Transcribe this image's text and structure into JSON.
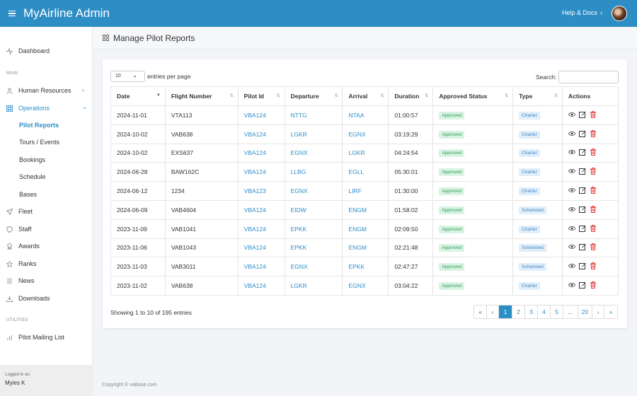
{
  "app": {
    "title": "MyAirline Admin",
    "help_label": "Help & Docs"
  },
  "sidebar": {
    "dashboard": "Dashboard",
    "section_main": "MAIN",
    "section_utilities": "UTILITIES",
    "items": [
      {
        "label": "Human Resources"
      },
      {
        "label": "Operations"
      },
      {
        "label": "Fleet"
      },
      {
        "label": "Staff"
      },
      {
        "label": "Awards"
      },
      {
        "label": "Ranks"
      },
      {
        "label": "News"
      },
      {
        "label": "Downloads"
      },
      {
        "label": "Pilot Mailing List"
      }
    ],
    "subitems": [
      {
        "label": "Pilot Reports"
      },
      {
        "label": "Tours / Events"
      },
      {
        "label": "Bookings"
      },
      {
        "label": "Schedule"
      },
      {
        "label": "Bases"
      }
    ],
    "logged_in_label": "Logged in as:",
    "logged_in_user": "Myles K"
  },
  "page": {
    "title": "Manage Pilot Reports"
  },
  "table": {
    "page_length": "10",
    "length_label": "entries per page",
    "search_label": "Search:",
    "columns": [
      "Date",
      "Flight Number",
      "Pilot Id",
      "Departure",
      "Arrival",
      "Duration",
      "Approved Status",
      "Type",
      "Actions"
    ],
    "rows": [
      [
        "2024-11-01",
        "VTA113",
        "VBA124",
        "NTTG",
        "NTAA",
        "01:00:57",
        "Approved",
        "Charter"
      ],
      [
        "2024-10-02",
        "VAB638",
        "VBA124",
        "LGKR",
        "EGNX",
        "03:19:29",
        "Approved",
        "Charter"
      ],
      [
        "2024-10-02",
        "EXS637",
        "VBA124",
        "EGNX",
        "LGKR",
        "04:24:54",
        "Approved",
        "Charter"
      ],
      [
        "2024-06-28",
        "BAW162C",
        "VBA124",
        "LLBG",
        "EGLL",
        "05:30:01",
        "Approved",
        "Charter"
      ],
      [
        "2024-06-12",
        "1234",
        "VBA123",
        "EGNX",
        "LIRF",
        "01:30:00",
        "Approved",
        "Charter"
      ],
      [
        "2024-06-09",
        "VAB4604",
        "VBA124",
        "EIDW",
        "ENGM",
        "01:58:02",
        "Approved",
        "Scheduled"
      ],
      [
        "2023-11-09",
        "VAB1041",
        "VBA124",
        "EPKK",
        "ENGM",
        "02:09:50",
        "Approved",
        "Charter"
      ],
      [
        "2023-11-06",
        "VAB1043",
        "VBA124",
        "EPKK",
        "ENGM",
        "02:21:48",
        "Approved",
        "Scheduled"
      ],
      [
        "2023-11-03",
        "VAB3011",
        "VBA124",
        "EGNX",
        "EPKK",
        "02:47:27",
        "Approved",
        "Scheduled"
      ],
      [
        "2023-11-02",
        "VAB638",
        "VBA124",
        "LGKR",
        "EGNX",
        "03:04:22",
        "Approved",
        "Charter"
      ]
    ],
    "info": "Showing 1 to 10 of 195 entries",
    "pagination": [
      "«",
      "‹",
      "1",
      "2",
      "3",
      "4",
      "5",
      "...",
      "20",
      "›",
      "»"
    ],
    "current_page": "1"
  },
  "footer": "Copyright © vaBase.com",
  "colors": {
    "accent": "#2d8ec6",
    "approved_bg": "#d9f3e3",
    "type_bg": "#e0eefa",
    "delete": "#e53935"
  },
  "icons": {
    "view": "eye-icon",
    "edit": "edit-icon",
    "delete": "trash-icon"
  }
}
